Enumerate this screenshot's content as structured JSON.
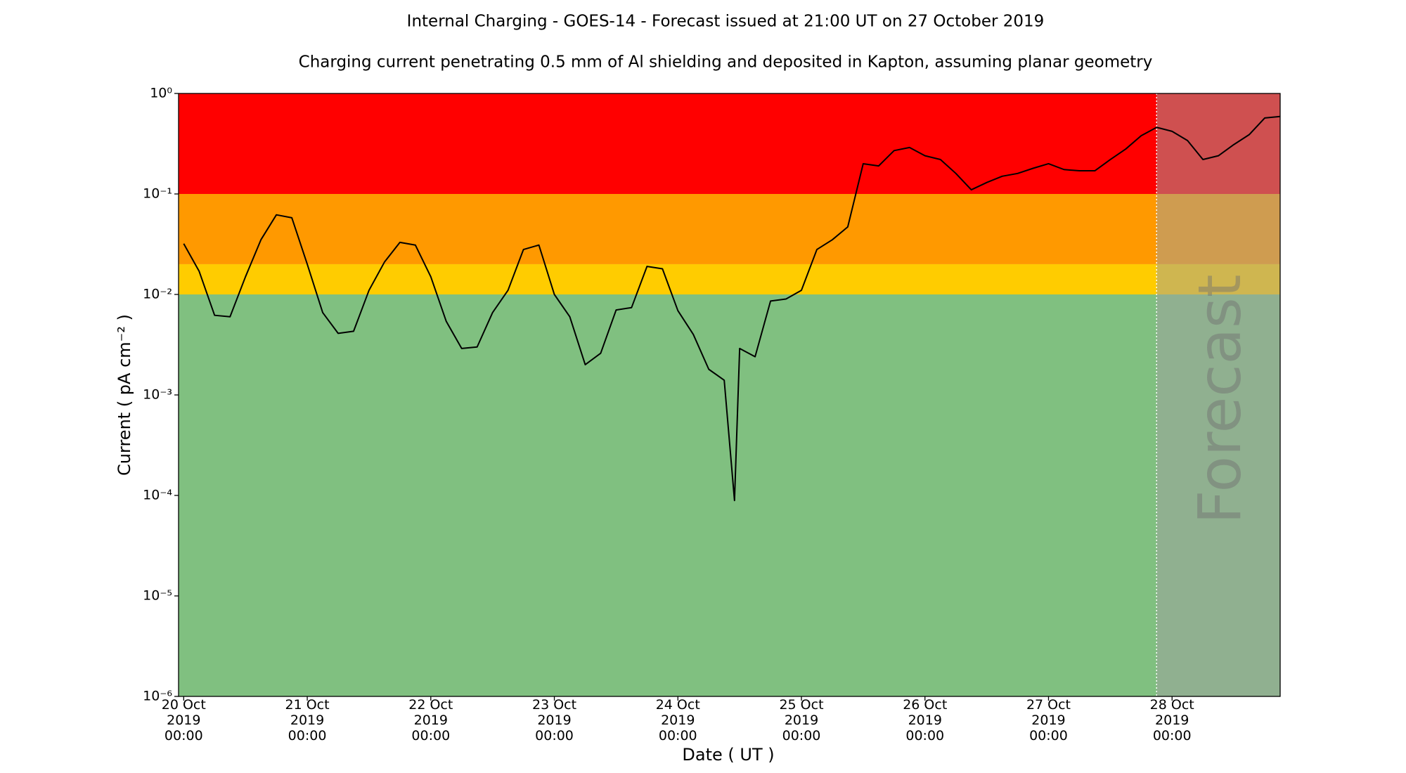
{
  "chart_data": {
    "type": "line",
    "title": "Internal Charging - GOES-14 - Forecast issued at 21:00 UT on 27 October 2019",
    "subtitle": "Charging current penetrating 0.5 mm of Al shielding and deposited in Kapton, assuming planar geometry",
    "x_label": "Date ( UT )",
    "y_label": "Current ( pA cm⁻² )",
    "log_y": true,
    "color": "#000000",
    "x": [
      "2019-10-20 00:00",
      "2019-10-20 03:00",
      "2019-10-20 06:00",
      "2019-10-20 09:00",
      "2019-10-20 12:00",
      "2019-10-20 15:00",
      "2019-10-20 18:00",
      "2019-10-20 21:00",
      "2019-10-21 00:00",
      "2019-10-21 03:00",
      "2019-10-21 06:00",
      "2019-10-21 09:00",
      "2019-10-21 12:00",
      "2019-10-21 15:00",
      "2019-10-21 18:00",
      "2019-10-21 21:00",
      "2019-10-22 00:00",
      "2019-10-22 03:00",
      "2019-10-22 06:00",
      "2019-10-22 09:00",
      "2019-10-22 12:00",
      "2019-10-22 15:00",
      "2019-10-22 18:00",
      "2019-10-22 21:00",
      "2019-10-23 00:00",
      "2019-10-23 03:00",
      "2019-10-23 06:00",
      "2019-10-23 09:00",
      "2019-10-23 12:00",
      "2019-10-23 15:00",
      "2019-10-23 18:00",
      "2019-10-23 21:00",
      "2019-10-24 00:00",
      "2019-10-24 03:00",
      "2019-10-24 06:00",
      "2019-10-24 09:00",
      "2019-10-24 11:00",
      "2019-10-24 12:00",
      "2019-10-24 15:00",
      "2019-10-24 18:00",
      "2019-10-24 21:00",
      "2019-10-25 00:00",
      "2019-10-25 03:00",
      "2019-10-25 06:00",
      "2019-10-25 09:00",
      "2019-10-25 12:00",
      "2019-10-25 15:00",
      "2019-10-25 18:00",
      "2019-10-25 21:00",
      "2019-10-26 00:00",
      "2019-10-26 03:00",
      "2019-10-26 06:00",
      "2019-10-26 09:00",
      "2019-10-26 12:00",
      "2019-10-26 15:00",
      "2019-10-26 18:00",
      "2019-10-26 21:00",
      "2019-10-27 00:00",
      "2019-10-27 03:00",
      "2019-10-27 06:00",
      "2019-10-27 09:00",
      "2019-10-27 12:00",
      "2019-10-27 15:00",
      "2019-10-27 18:00",
      "2019-10-27 21:00",
      "2019-10-28 00:00",
      "2019-10-28 03:00",
      "2019-10-28 06:00",
      "2019-10-28 09:00",
      "2019-10-28 12:00",
      "2019-10-28 15:00",
      "2019-10-28 18:00",
      "2019-10-28 21:00"
    ],
    "values": [
      0.032,
      0.017,
      0.0062,
      0.006,
      0.015,
      0.035,
      0.062,
      0.058,
      0.02,
      0.0066,
      0.0041,
      0.0043,
      0.011,
      0.021,
      0.033,
      0.031,
      0.015,
      0.0054,
      0.0029,
      0.003,
      0.0066,
      0.011,
      0.028,
      0.031,
      0.01,
      0.006,
      0.002,
      0.0026,
      0.007,
      0.0074,
      0.019,
      0.018,
      0.0069,
      0.004,
      0.0018,
      0.0014,
      8.9e-05,
      0.0029,
      0.0024,
      0.0086,
      0.009,
      0.011,
      0.028,
      0.035,
      0.047,
      0.2,
      0.19,
      0.27,
      0.29,
      0.24,
      0.22,
      0.16,
      0.11,
      0.13,
      0.15,
      0.16,
      0.18,
      0.2,
      0.175,
      0.17,
      0.17,
      0.22,
      0.28,
      0.38,
      0.46,
      0.42,
      0.34,
      0.22,
      0.24,
      0.31,
      0.39,
      0.57,
      0.59
    ],
    "xlim": [
      "2019-10-19 23:00",
      "2019-10-28 21:00"
    ],
    "ylim": [
      1e-06,
      1
    ],
    "xticks": [
      {
        "value": "2019-10-20 00:00",
        "label": "20 Oct\n2019\n00:00"
      },
      {
        "value": "2019-10-21 00:00",
        "label": "21 Oct\n2019\n00:00"
      },
      {
        "value": "2019-10-22 00:00",
        "label": "22 Oct\n2019\n00:00"
      },
      {
        "value": "2019-10-23 00:00",
        "label": "23 Oct\n2019\n00:00"
      },
      {
        "value": "2019-10-24 00:00",
        "label": "24 Oct\n2019\n00:00"
      },
      {
        "value": "2019-10-25 00:00",
        "label": "25 Oct\n2019\n00:00"
      },
      {
        "value": "2019-10-26 00:00",
        "label": "26 Oct\n2019\n00:00"
      },
      {
        "value": "2019-10-27 00:00",
        "label": "27 Oct\n2019\n00:00"
      },
      {
        "value": "2019-10-28 00:00",
        "label": "28 Oct\n2019\n00:00"
      }
    ],
    "yticks": [
      {
        "value": 1e-06,
        "label": "10⁻⁶"
      },
      {
        "value": 1e-05,
        "label": "10⁻⁵"
      },
      {
        "value": 0.0001,
        "label": "10⁻⁴"
      },
      {
        "value": 0.001,
        "label": "10⁻³"
      },
      {
        "value": 0.01,
        "label": "10⁻²"
      },
      {
        "value": 0.1,
        "label": "10⁻¹"
      },
      {
        "value": 1,
        "label": "10⁰"
      }
    ],
    "bands": [
      {
        "from": 0.1,
        "to": 1,
        "color": "#ff0000"
      },
      {
        "from": 0.02,
        "to": 0.1,
        "color": "#ff9900"
      },
      {
        "from": 0.01,
        "to": 0.02,
        "color": "#ffcc00"
      },
      {
        "from": 1e-06,
        "to": 0.01,
        "color": "#80c080"
      }
    ],
    "forecast_start": "2019-10-27 21:00",
    "forecast_label": "Forecast"
  }
}
